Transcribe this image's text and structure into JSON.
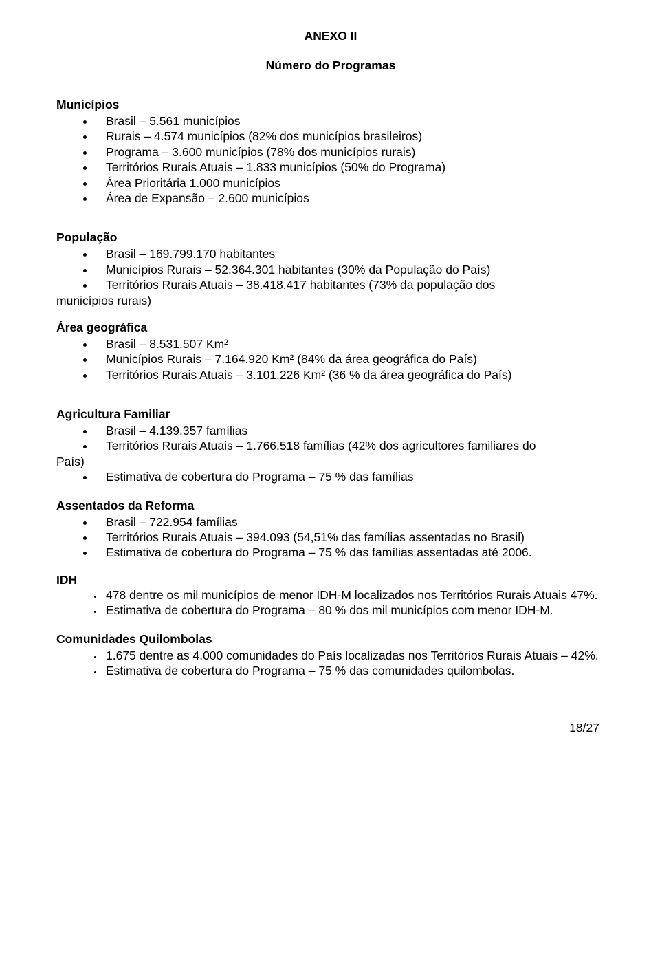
{
  "title": "ANEXO II",
  "subtitle": "Número do Programas",
  "sections": {
    "municipios": {
      "heading": "Municípios",
      "items": [
        "Brasil – 5.561 municípios",
        "Rurais – 4.574 municípios (82% dos municípios brasileiros)",
        "Programa – 3.600 municípios (78% dos municípios rurais)",
        "Territórios Rurais Atuais – 1.833 municípios (50% do Programa)",
        "Área Prioritária 1.000 municípios",
        "Área de Expansão – 2.600 municípios"
      ]
    },
    "populacao": {
      "heading": "População",
      "items": [
        "Brasil – 169.799.170 habitantes",
        "Municípios Rurais – 52.364.301 habitantes (30% da População do País)",
        "Territórios Rurais Atuais – 38.418.417 habitantes (73% da população dos"
      ],
      "trailing": "municípios rurais)"
    },
    "area": {
      "heading": "Área geográfica",
      "items": [
        "Brasil – 8.531.507 Km²",
        "Municípios Rurais – 7.164.920 Km² (84% da área geográfica do País)",
        "Territórios Rurais Atuais – 3.101.226 Km² (36 % da área geográfica do País)"
      ]
    },
    "agricultura": {
      "heading": "Agricultura Familiar",
      "items": [
        "Brasil – 4.139.357 famílias",
        "Territórios Rurais Atuais – 1.766.518 famílias (42% dos agricultores familiares do"
      ],
      "trailing": "País)",
      "items2": [
        "Estimativa de cobertura do Programa – 75 % das famílias"
      ]
    },
    "assentados": {
      "heading": "Assentados da Reforma",
      "items": [
        "Brasil – 722.954 famílias",
        "Territórios Rurais Atuais – 394.093 (54,51% das famílias assentadas no Brasil)",
        "Estimativa de cobertura do Programa – 75 % das famílias assentadas até 2006."
      ]
    },
    "idh": {
      "heading": "IDH",
      "items": [
        "478 dentre os mil municípios de menor IDH-M localizados nos Territórios Rurais Atuais 47%.",
        "Estimativa de cobertura do Programa – 80 % dos mil municípios com menor IDH-M."
      ]
    },
    "quilombolas": {
      "heading": "Comunidades Quilombolas",
      "items": [
        "1.675 dentre as 4.000 comunidades do País localizadas nos Territórios Rurais Atuais – 42%.",
        "Estimativa de cobertura do Programa – 75 % das comunidades quilombolas."
      ]
    }
  },
  "footer": "18/27"
}
